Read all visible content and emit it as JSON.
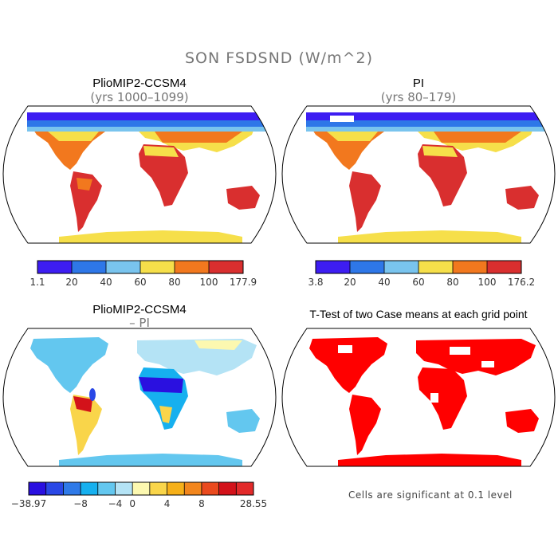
{
  "figure": {
    "title": "SON FSDSND (W/m^2)"
  },
  "panels": [
    {
      "title": "PlioMIP2-CCSM4",
      "subtitle": "(yrs 1000–1099)",
      "colorbar": {
        "colors": [
          "#3d1df2",
          "#2e77e8",
          "#79c4ee",
          "#f6df4a",
          "#f2781e",
          "#d92f2f"
        ],
        "labels": [
          "1.1",
          "20",
          "40",
          "60",
          "80",
          "100",
          "177.9"
        ]
      }
    },
    {
      "title": "PI",
      "subtitle": "(yrs 80–179)",
      "colorbar": {
        "colors": [
          "#3d1df2",
          "#2e77e8",
          "#79c4ee",
          "#f6df4a",
          "#f2781e",
          "#d92f2f"
        ],
        "labels": [
          "3.8",
          "20",
          "40",
          "60",
          "80",
          "100",
          "176.2"
        ]
      }
    },
    {
      "title": "PlioMIP2-CCSM4",
      "subtitle": "– PI",
      "colorbar": {
        "colors": [
          "#2a10e0",
          "#2a48e6",
          "#2f7ae8",
          "#16b0ef",
          "#63c7ef",
          "#b4e3f5",
          "#fcf8b0",
          "#f9d54a",
          "#f6b019",
          "#f2861d",
          "#ea4a1e",
          "#d3121a",
          "#e22a2a"
        ],
        "labels": [
          "−38.97",
          "−8",
          "−4",
          "0",
          "4",
          "8",
          "28.55"
        ]
      }
    },
    {
      "title": "T-Test of two Case means at each grid point",
      "note": "Cells are significant at 0.1 level"
    }
  ]
}
